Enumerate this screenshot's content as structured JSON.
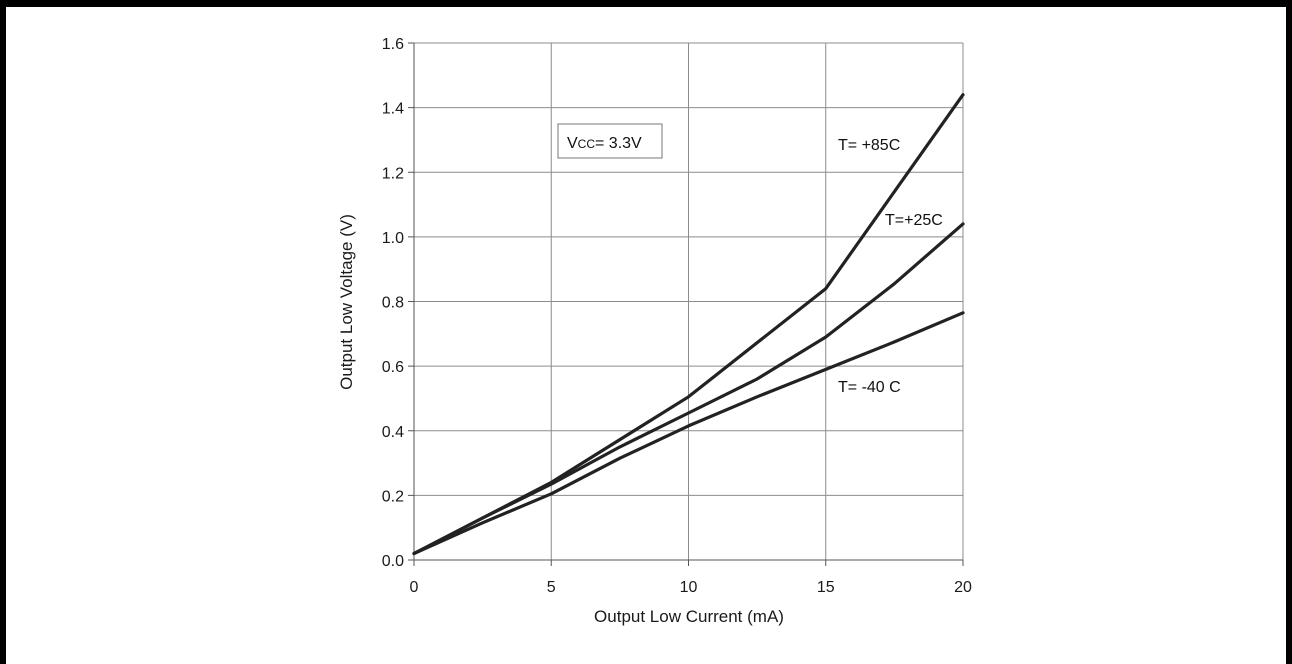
{
  "chart_data": {
    "type": "line",
    "title": "",
    "xlabel": "Output Low Current (mA)",
    "ylabel": "Output Low Voltage (V)",
    "xlim": [
      0,
      20
    ],
    "ylim": [
      0,
      1.6
    ],
    "xticks": [
      "0",
      "5",
      "10",
      "15",
      "20"
    ],
    "yticks": [
      "0.0",
      "0.2",
      "0.4",
      "0.6",
      "0.8",
      "1.0",
      "1.2",
      "1.4",
      "1.6"
    ],
    "grid": true,
    "legend": "none",
    "line_color": "#222222",
    "annotation": {
      "v": "V",
      "sub": "CC",
      "rest": "= 3.3V"
    },
    "series": [
      {
        "name": "T= +85C",
        "x": [
          0,
          5,
          10,
          15,
          20
        ],
        "y": [
          0.02,
          0.24,
          0.505,
          0.84,
          1.44
        ]
      },
      {
        "name": "T=+25C",
        "x": [
          0,
          2.5,
          5,
          7.5,
          10,
          12.5,
          15,
          17.5,
          20
        ],
        "y": [
          0.02,
          0.13,
          0.235,
          0.35,
          0.455,
          0.56,
          0.69,
          0.855,
          1.04
        ]
      },
      {
        "name": "T= -40 C",
        "x": [
          0,
          2.5,
          5,
          7.5,
          10,
          12.5,
          15,
          17.5,
          20
        ],
        "y": [
          0.02,
          0.115,
          0.205,
          0.315,
          0.415,
          0.505,
          0.59,
          0.675,
          0.765
        ]
      }
    ]
  }
}
